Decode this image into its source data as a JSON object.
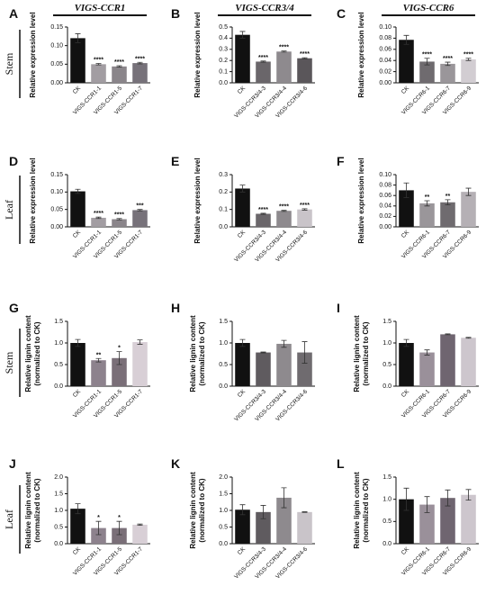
{
  "column_titles": [
    "VIGS-CCR1",
    "VIGS-CCR3/4",
    "VIGS-CCR6"
  ],
  "row_labels": [
    "Stem",
    "Leaf",
    "Stem",
    "Leaf"
  ],
  "chart_data": [
    {
      "type": "bar",
      "panel": "A",
      "ylabel": [
        "Relative expression level"
      ],
      "categories": [
        "CK",
        "VIGS-CCR1-1",
        "VIGS-CCR1-5",
        "VIGS-CCR1-7"
      ],
      "values": [
        0.12,
        0.05,
        0.044,
        0.053
      ],
      "errors": [
        0.012,
        0.002,
        0.002,
        0.002
      ],
      "significance": [
        null,
        "****",
        "****",
        "****"
      ],
      "colors": [
        "#111111",
        "#a29da2",
        "#8a858a",
        "#77727a"
      ],
      "ylim": [
        0,
        0.15
      ],
      "yticks": [
        {
          "value": 0,
          "label": "0.00"
        },
        0.05,
        {
          "value": 0.1,
          "label": "0.10"
        },
        0.15
      ]
    },
    {
      "type": "bar",
      "panel": "B",
      "ylabel": [
        "Relative expression level"
      ],
      "categories": [
        "CK",
        "VIGS-CCR3/4-3",
        "VIGS-CCR3/4-4",
        "VIGS-CCR3/4-6"
      ],
      "values": [
        0.43,
        0.19,
        0.28,
        0.22
      ],
      "errors": [
        0.03,
        0.005,
        0.005,
        0.005
      ],
      "significance": [
        null,
        "****",
        "****",
        "****"
      ],
      "colors": [
        "#111111",
        "#6a666a",
        "#8e8a8e",
        "#5a565a"
      ],
      "ylim": [
        0,
        0.5
      ],
      "yticks": [
        {
          "value": 0,
          "label": "0.0"
        },
        0.1,
        0.2,
        0.3,
        0.4,
        0.5
      ]
    },
    {
      "type": "bar",
      "panel": "C",
      "ylabel": [
        "Relative expression level"
      ],
      "categories": [
        "CK",
        "VIGS-CCR6-1",
        "VIGS-CCR6-7",
        "VIGS-CCR6-9"
      ],
      "values": [
        0.077,
        0.038,
        0.034,
        0.042
      ],
      "errors": [
        0.008,
        0.006,
        0.003,
        0.002
      ],
      "significance": [
        null,
        "****",
        "****",
        "****"
      ],
      "colors": [
        "#111111",
        "#6f6b6f",
        "#9a969a",
        "#d2cdd2"
      ],
      "ylim": [
        0,
        0.1
      ],
      "yticks": [
        {
          "value": 0,
          "label": "0.00"
        },
        0.02,
        0.04,
        0.06,
        0.08,
        {
          "value": 0.1,
          "label": "0.10"
        }
      ]
    },
    {
      "type": "bar",
      "panel": "D",
      "ylabel": [
        "Relative expression level"
      ],
      "categories": [
        "CK",
        "VIGS-CCR1-1",
        "VIGS-CCR1-5",
        "VIGS-CCR1-7"
      ],
      "values": [
        0.102,
        0.026,
        0.022,
        0.048
      ],
      "errors": [
        0.006,
        0.002,
        0.002,
        0.002
      ],
      "significance": [
        null,
        "****",
        "****",
        "***"
      ],
      "colors": [
        "#111111",
        "#a29da2",
        "#8a858a",
        "#77727a"
      ],
      "ylim": [
        0,
        0.15
      ],
      "yticks": [
        {
          "value": 0,
          "label": "0.00"
        },
        0.05,
        {
          "value": 0.1,
          "label": "0.10"
        },
        0.15
      ]
    },
    {
      "type": "bar",
      "panel": "E",
      "ylabel": [
        "Relative expression level"
      ],
      "categories": [
        "CK",
        "VIGS-CCR3/4-3",
        "VIGS-CCR3/4-4",
        "VIGS-CCR3/4-6"
      ],
      "values": [
        0.22,
        0.075,
        0.092,
        0.1
      ],
      "errors": [
        0.02,
        0.003,
        0.003,
        0.004
      ],
      "significance": [
        null,
        "****",
        "****",
        "****"
      ],
      "colors": [
        "#111111",
        "#6a666a",
        "#8e8a8e",
        "#c9c4c9"
      ],
      "ylim": [
        0,
        0.3
      ],
      "yticks": [
        {
          "value": 0,
          "label": "0.0"
        },
        0.1,
        0.2,
        0.3
      ]
    },
    {
      "type": "bar",
      "panel": "F",
      "ylabel": [
        "Relative expression level"
      ],
      "categories": [
        "CK",
        "VIGS-CCR6-1",
        "VIGS-CCR6-7",
        "VIGS-CCR6-9"
      ],
      "values": [
        0.07,
        0.045,
        0.047,
        0.067
      ],
      "errors": [
        0.014,
        0.005,
        0.005,
        0.007
      ],
      "significance": [
        null,
        "**",
        "**",
        null
      ],
      "colors": [
        "#111111",
        "#9a969a",
        "#6f6b6f",
        "#b5b0b5"
      ],
      "ylim": [
        0,
        0.1
      ],
      "yticks": [
        {
          "value": 0,
          "label": "0.00"
        },
        0.02,
        0.04,
        0.06,
        0.08,
        {
          "value": 0.1,
          "label": "0.10"
        }
      ]
    },
    {
      "type": "bar",
      "panel": "G",
      "ylabel": [
        "Relative lignin content",
        "(normalized to CK)"
      ],
      "categories": [
        "CK",
        "VIGS-CCR1-1",
        "VIGS-CCR1-5",
        "VIGS-CCR1-7"
      ],
      "values": [
        1.0,
        0.6,
        0.65,
        1.02
      ],
      "errors": [
        0.08,
        0.04,
        0.15,
        0.05
      ],
      "significance": [
        null,
        "**",
        "*",
        null
      ],
      "colors": [
        "#111111",
        "#8d828d",
        "#7a6f78",
        "#d8cfd6"
      ],
      "ylim": [
        0,
        1.5
      ],
      "yticks": [
        {
          "value": 0,
          "label": "0.0"
        },
        0.5,
        {
          "value": 1,
          "label": "1.0"
        },
        1.5
      ]
    },
    {
      "type": "bar",
      "panel": "H",
      "ylabel": [
        "Relative lignin content",
        "(normalized to CK)"
      ],
      "categories": [
        "CK",
        "VIGS-CCR3/4-3",
        "VIGS-CCR3/4-4",
        "VIGS-CCR3/4-6"
      ],
      "values": [
        1.0,
        0.78,
        0.98,
        0.78
      ],
      "errors": [
        0.08,
        0.01,
        0.08,
        0.25
      ],
      "significance": [
        null,
        null,
        null,
        null
      ],
      "colors": [
        "#111111",
        "#5f5b5f",
        "#8e8a8e",
        "#6f6b6f"
      ],
      "ylim": [
        0,
        1.5
      ],
      "yticks": [
        {
          "value": 0,
          "label": "0.0"
        },
        0.5,
        {
          "value": 1,
          "label": "1.0"
        },
        1.5
      ]
    },
    {
      "type": "bar",
      "panel": "I",
      "ylabel": [
        "Relative lignin content",
        "(normalized to CK)"
      ],
      "categories": [
        "CK",
        "VIGS-CCR6-1",
        "VIGS-CCR6-7",
        "VIGS-CCR6-9"
      ],
      "values": [
        1.0,
        0.78,
        1.2,
        1.12
      ],
      "errors": [
        0.08,
        0.06,
        0.01,
        0.01
      ],
      "significance": [
        null,
        null,
        null,
        null
      ],
      "colors": [
        "#111111",
        "#9a909a",
        "#6f6570",
        "#cdc6cd"
      ],
      "ylim": [
        0,
        1.5
      ],
      "yticks": [
        {
          "value": 0,
          "label": "0.0"
        },
        0.5,
        {
          "value": 1,
          "label": "1.0"
        },
        1.5
      ]
    },
    {
      "type": "bar",
      "panel": "J",
      "ylabel": [
        "Relative lignin content",
        "(normalized to CK)"
      ],
      "categories": [
        "CK",
        "VIGS-CCR1-1",
        "VIGS-CCR1-5",
        "VIGS-CCR1-7"
      ],
      "values": [
        1.05,
        0.47,
        0.47,
        0.57
      ],
      "errors": [
        0.15,
        0.2,
        0.2,
        0.02
      ],
      "significance": [
        null,
        "*",
        "*",
        null
      ],
      "colors": [
        "#111111",
        "#8d828d",
        "#7a6f78",
        "#d8cfd6"
      ],
      "ylim": [
        0,
        2
      ],
      "yticks": [
        {
          "value": 0,
          "label": "0.0"
        },
        0.5,
        {
          "value": 1,
          "label": "1.0"
        },
        1.5,
        {
          "value": 2,
          "label": "2.0"
        }
      ]
    },
    {
      "type": "bar",
      "panel": "K",
      "ylabel": [
        "Relative lignin content",
        "(normalized to CK)"
      ],
      "categories": [
        "CK",
        "VIGS-CCR3/4-3",
        "VIGS-CCR3/4-4",
        "VIGS-CCR3/4-6"
      ],
      "values": [
        1.02,
        0.95,
        1.38,
        0.95
      ],
      "errors": [
        0.15,
        0.2,
        0.3,
        0.01
      ],
      "significance": [
        null,
        null,
        null,
        null
      ],
      "colors": [
        "#111111",
        "#5f5b5f",
        "#8e8a8e",
        "#c9c4c9"
      ],
      "ylim": [
        0,
        2
      ],
      "yticks": [
        {
          "value": 0,
          "label": "0.0"
        },
        0.5,
        {
          "value": 1,
          "label": "1.0"
        },
        1.5,
        {
          "value": 2,
          "label": "2.0"
        }
      ]
    },
    {
      "type": "bar",
      "panel": "L",
      "ylabel": [
        "Relative lignin content",
        "(normalized to CK)"
      ],
      "categories": [
        "CK",
        "VIGS-CCR6-1",
        "VIGS-CCR6-7",
        "VIGS-CCR6-9"
      ],
      "values": [
        1.0,
        0.88,
        1.03,
        1.1
      ],
      "errors": [
        0.25,
        0.18,
        0.18,
        0.12
      ],
      "significance": [
        null,
        null,
        null,
        null
      ],
      "colors": [
        "#111111",
        "#9a909a",
        "#6f6570",
        "#cdc6cd"
      ],
      "ylim": [
        0,
        1.5
      ],
      "yticks": [
        {
          "value": 0,
          "label": "0.0"
        },
        0.5,
        {
          "value": 1,
          "label": "1.0"
        },
        1.5
      ]
    }
  ]
}
